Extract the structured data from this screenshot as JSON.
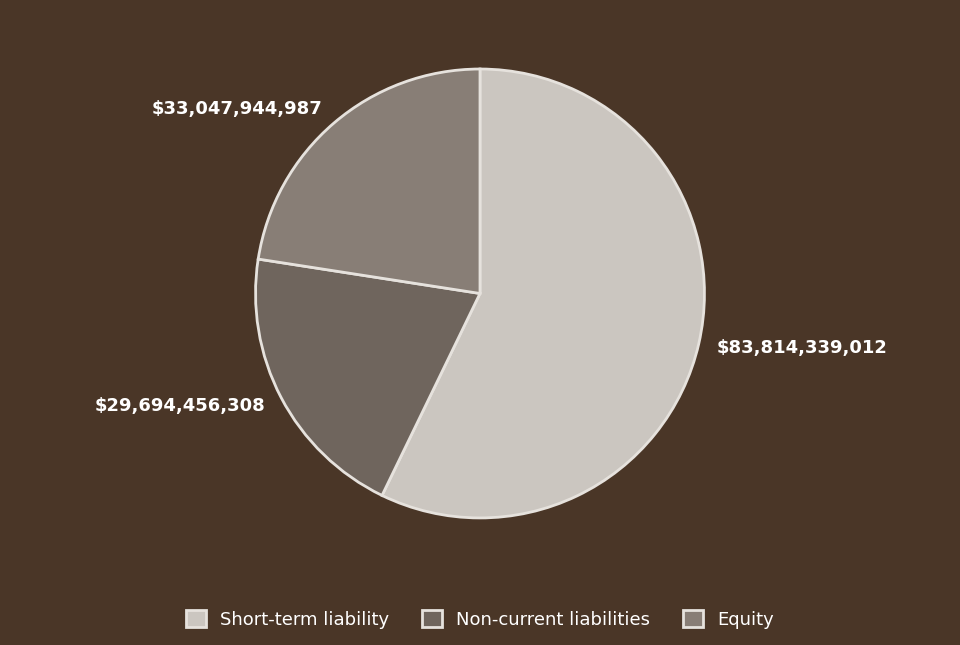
{
  "chart_data": {
    "type": "pie",
    "categories": [
      "Short-term liability",
      "Non-current liabilities",
      "Equity"
    ],
    "values": [
      83814339012,
      29694456308,
      33047944987
    ],
    "value_labels": [
      "$83,814,339,012",
      "$29,694,456,308",
      "$33,047,944,987"
    ],
    "colors": [
      "#cbc6c0",
      "#6f655d",
      "#887e76"
    ],
    "data_labels": true,
    "legend": "lower center"
  }
}
